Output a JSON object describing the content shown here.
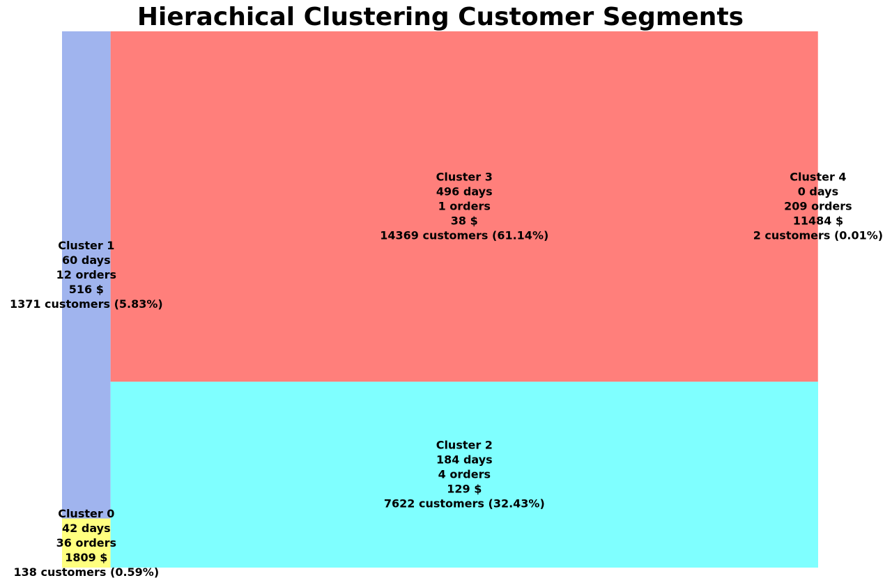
{
  "chart_data": {
    "type": "treemap",
    "title": "Hierachical Clustering Customer Segments",
    "segments": [
      {
        "id": "cluster-0",
        "name": "Cluster 0",
        "lines": [
          "Cluster 0",
          "42 days",
          "36 orders",
          "1809 $",
          "138 customers (0.59%)"
        ],
        "days": 42,
        "orders": 36,
        "value_usd": 1809,
        "customers": 138,
        "percent": 0.59,
        "color": "#ffff7f"
      },
      {
        "id": "cluster-1",
        "name": "Cluster 1",
        "lines": [
          "Cluster 1",
          "60 days",
          "12 orders",
          "516 $",
          "1371 customers (5.83%)"
        ],
        "days": 60,
        "orders": 12,
        "value_usd": 516,
        "customers": 1371,
        "percent": 5.83,
        "color": "#a0b4ee"
      },
      {
        "id": "cluster-2",
        "name": "Cluster 2",
        "lines": [
          "Cluster 2",
          "184 days",
          "4 orders",
          "129 $",
          "7622 customers (32.43%)"
        ],
        "days": 184,
        "orders": 4,
        "value_usd": 129,
        "customers": 7622,
        "percent": 32.43,
        "color": "#7fffff"
      },
      {
        "id": "cluster-3",
        "name": "Cluster 3",
        "lines": [
          "Cluster 3",
          "496 days",
          "1 orders",
          "38 $",
          "14369 customers (61.14%)"
        ],
        "days": 496,
        "orders": 1,
        "value_usd": 38,
        "customers": 14369,
        "percent": 61.14,
        "color": "#ff7f7b"
      },
      {
        "id": "cluster-4",
        "name": "Cluster 4",
        "lines": [
          "Cluster 4",
          "0 days",
          "209 orders",
          "11484 $",
          "2 customers (0.01%)"
        ],
        "days": 0,
        "orders": 209,
        "value_usd": 11484,
        "customers": 2,
        "percent": 0.01,
        "color": "#ffffff"
      }
    ]
  }
}
